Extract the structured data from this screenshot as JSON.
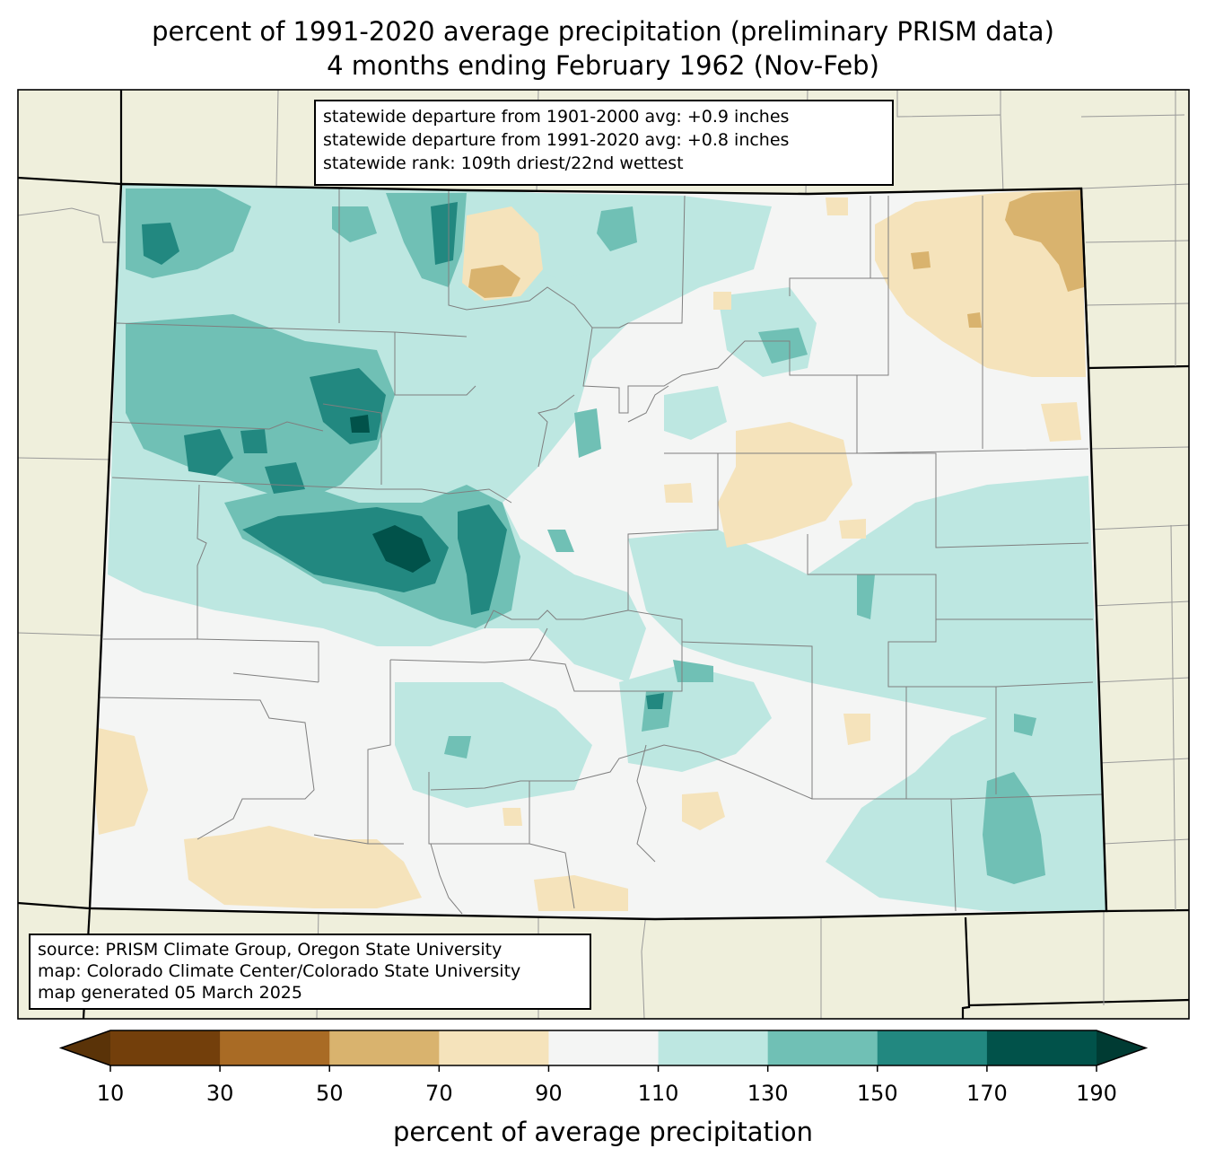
{
  "title": {
    "line1": "percent of 1991-2020 average precipitation (preliminary PRISM data)",
    "line2": "4 months ending February 1962 (Nov-Feb)"
  },
  "stats_box": {
    "line1": "statewide departure from 1901-2000 avg: +0.9 inches",
    "line2": "statewide departure from 1991-2020 avg: +0.8 inches",
    "line3": "statewide rank: 109th driest/22nd wettest"
  },
  "source_box": {
    "line1": "source: PRISM Climate Group, Oregon State University",
    "line2": "map: Colorado Climate Center/Colorado State University",
    "line3": "map generated 05 March 2025"
  },
  "colorbar": {
    "title": "percent of average precipitation",
    "ticks": [
      "10",
      "30",
      "50",
      "70",
      "90",
      "110",
      "130",
      "150",
      "170",
      "190"
    ],
    "colors": [
      "#733f0b",
      "#a96b25",
      "#d9b36e",
      "#f5e3bb",
      "#f4f5f4",
      "#bde7e1",
      "#70c0b5",
      "#228880",
      "#01524a"
    ],
    "under_color": "#5a3308",
    "over_color": "#003b33"
  },
  "map_colors": {
    "land_outside": "#efefdc",
    "border": "#000000",
    "county_line": "#808080"
  }
}
